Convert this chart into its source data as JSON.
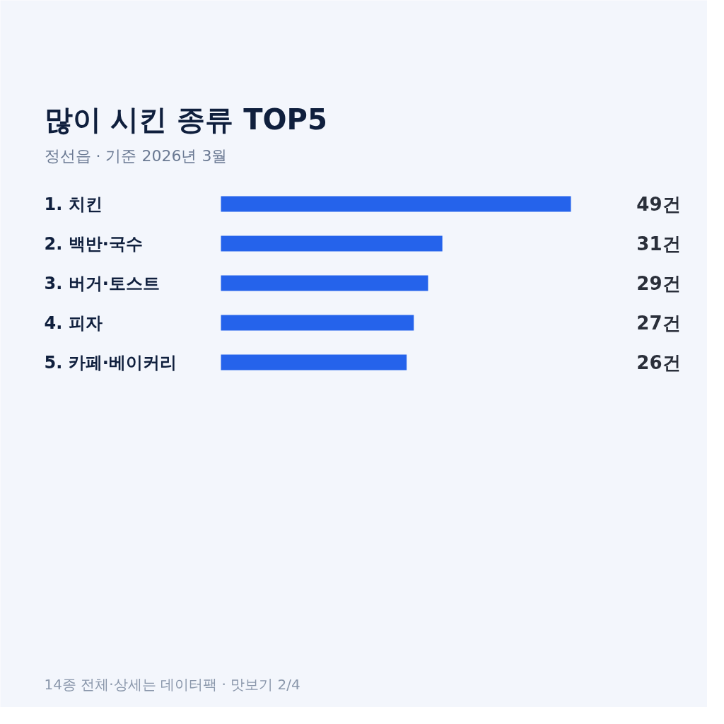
{
  "chart_data": {
    "type": "bar",
    "orientation": "horizontal",
    "title": "많이 시킨 종류 TOP5",
    "subtitle": "정선읍 · 기준 2026년 3월",
    "categories": [
      "1. 치킨",
      "2. 백반·국수",
      "3. 버거·토스트",
      "4. 피자",
      "5. 카페·베이커리"
    ],
    "values": [
      49,
      31,
      29,
      27,
      26
    ],
    "color": "#2563eb",
    "value_labels": [
      "49건",
      "31건",
      "29건",
      "27건",
      "26건"
    ],
    "annotations": [
      "14종 전체·상세는 데이터팩 · 맛보기 2/4"
    ]
  }
}
